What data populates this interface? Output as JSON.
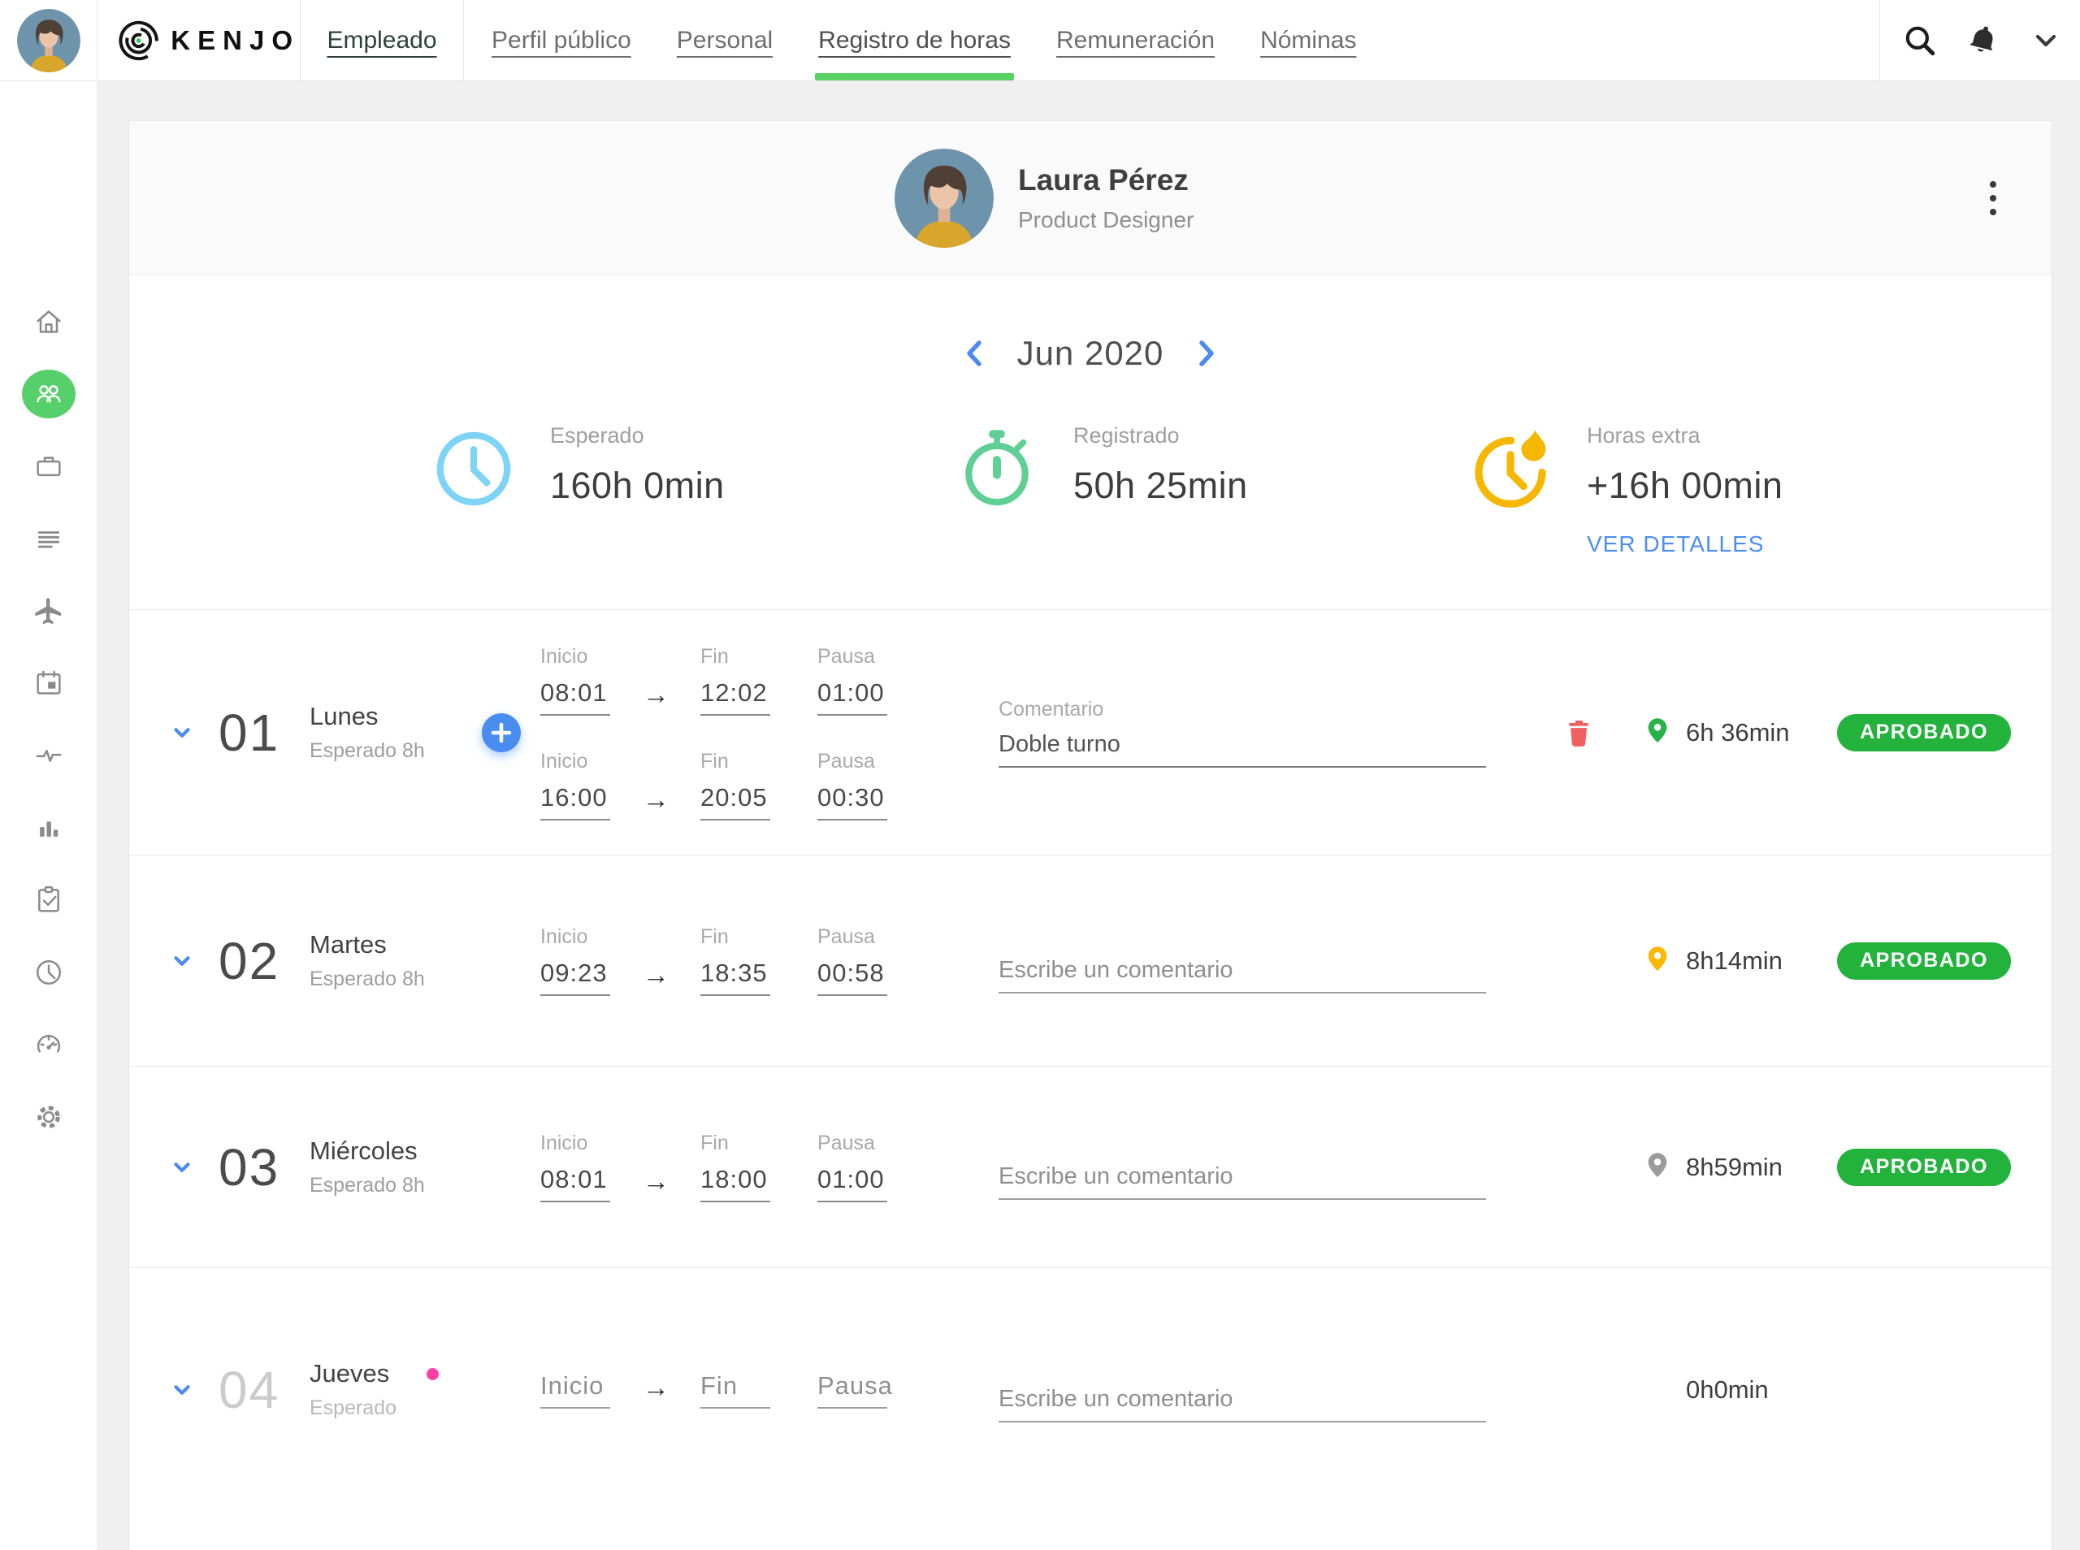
{
  "topbar": {
    "brand": "KENJO",
    "primary_tab": "Empleado",
    "tabs": [
      "Perfil público",
      "Personal",
      "Registro de horas",
      "Remuneración",
      "Nóminas"
    ],
    "active_tab": "Registro de horas"
  },
  "sidebar": {
    "items": [
      "home-icon",
      "people-icon",
      "briefcase-icon",
      "text-lines-icon",
      "airplane-icon",
      "calendar-icon",
      "pulse-icon",
      "bar-chart-icon",
      "clipboard-check-icon",
      "clock-icon",
      "gauge-icon",
      "gear-icon"
    ],
    "active_index": 1
  },
  "employee": {
    "name": "Laura Pérez",
    "role": "Product Designer"
  },
  "period": {
    "label": "Jun 2020"
  },
  "summary": [
    {
      "id": "esperado",
      "label": "Esperado",
      "value": "160h 0min",
      "color": "#7ed4f6",
      "icon": "clock-icon"
    },
    {
      "id": "registrado",
      "label": "Registrado",
      "value": "50h 25min",
      "color": "#5fcf96",
      "icon": "stopwatch-icon"
    },
    {
      "id": "horas-extra",
      "label": "Horas extra",
      "value": "+16h 00min",
      "color": "#f6b700",
      "icon": "overtime-flame-icon",
      "link": "VER DETALLES"
    }
  ],
  "fields": {
    "inicio": "Inicio",
    "fin": "Fin",
    "pausa": "Pausa",
    "comment_label": "Comentario",
    "comment_placeholder": "Escribe un comentario"
  },
  "days": [
    {
      "num": "01",
      "name": "Lunes",
      "expected": "Esperado 8h",
      "entries": [
        {
          "inicio": "08:01",
          "fin": "12:02",
          "pausa": "01:00"
        },
        {
          "inicio": "16:00",
          "fin": "20:05",
          "pausa": "00:30"
        }
      ],
      "comment": "Doble turno",
      "show_comment_label": true,
      "can_add": true,
      "can_delete": true,
      "pin_color": "#27b347",
      "total": "6h 36min",
      "status": "APROBADO"
    },
    {
      "num": "02",
      "name": "Martes",
      "expected": "Esperado 8h",
      "entries": [
        {
          "inicio": "09:23",
          "fin": "18:35",
          "pausa": "00:58"
        }
      ],
      "comment": "",
      "pin_color": "#fbb903",
      "total": "8h14min",
      "status": "APROBADO"
    },
    {
      "num": "03",
      "name": "Miércoles",
      "expected": "Esperado 8h",
      "entries": [
        {
          "inicio": "08:01",
          "fin": "18:00",
          "pausa": "01:00"
        }
      ],
      "comment": "",
      "pin_color": "#9b9b9b",
      "total": "8h59min",
      "status": "APROBADO"
    },
    {
      "num": "04",
      "name": "Jueves",
      "expected": "Esperado",
      "muted": true,
      "empty": true,
      "entries": [
        {
          "inicio": "",
          "fin": "",
          "pausa": ""
        }
      ],
      "comment": "",
      "dot_color": "#ff3fa5",
      "pin_color": null,
      "total": "0h0min",
      "status": null
    }
  ],
  "colors": {
    "approved_green": "#23b33d",
    "accent_blue": "#4a8df0",
    "link_blue": "#4c8ef2",
    "active_nav_green": "#58d263",
    "sidebar_active_green": "#57d06b",
    "delete_red": "#f25f5f"
  }
}
